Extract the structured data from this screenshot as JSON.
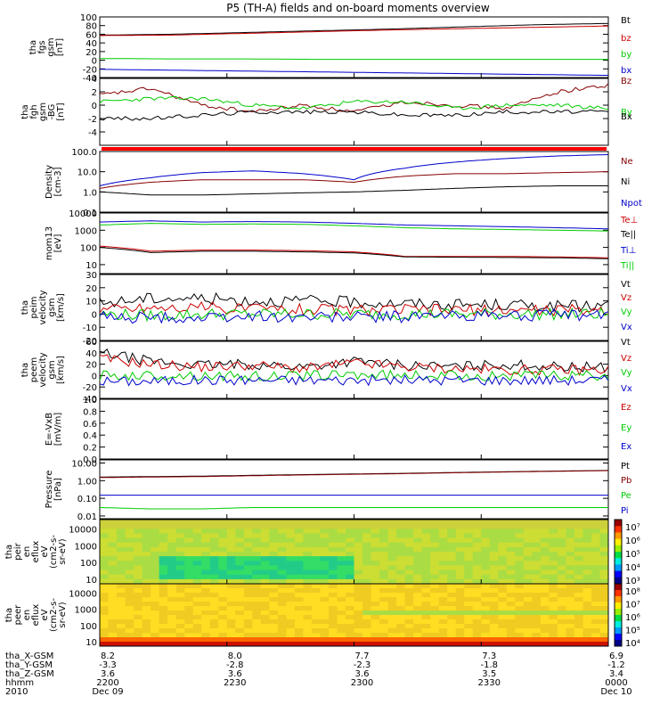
{
  "title": "P5 (TH-A) fields and on-board moments overview",
  "colors": {
    "black": "#000000",
    "red": "#cc0000",
    "green": "#00cc00",
    "blue": "#0000cc",
    "darkred": "#880000"
  },
  "chart_data": [
    {
      "id": "fgs",
      "type": "line",
      "ylabel": [
        "tha",
        "fgs",
        "gsm",
        "[nT]"
      ],
      "yscale": "linear",
      "ylim": [
        -40,
        100
      ],
      "yticks": [
        "100",
        "80",
        "60",
        "40",
        "20",
        "0",
        "-20",
        "-40"
      ],
      "yticks_values": [
        100,
        80,
        60,
        40,
        20,
        0,
        -20,
        -40
      ],
      "series": [
        {
          "name": "Bt",
          "color": "black",
          "values": [
            58,
            60,
            64,
            68,
            72,
            77,
            82,
            85
          ]
        },
        {
          "name": "bz",
          "color": "red",
          "values": [
            57,
            58,
            62,
            66,
            70,
            73,
            76,
            79
          ]
        },
        {
          "name": "by",
          "color": "green",
          "values": [
            4,
            3,
            3,
            2,
            2,
            2,
            2,
            2
          ]
        },
        {
          "name": "bx",
          "color": "blue",
          "values": [
            -21,
            -23,
            -25,
            -27,
            -29,
            -31,
            -33,
            -35
          ]
        }
      ]
    },
    {
      "id": "fgh",
      "type": "line",
      "ylabel": [
        "tha",
        "fgh",
        "gsm",
        "-BG",
        "[nT]"
      ],
      "yscale": "linear",
      "ylim": [
        -6,
        4
      ],
      "yticks": [
        "4",
        "2",
        "0",
        "-2",
        "-4"
      ],
      "yticks_values": [
        4,
        2,
        0,
        -2,
        -4
      ],
      "series": [
        {
          "name": "Bz",
          "color": "darkred",
          "values": [
            1.5,
            2.5,
            0,
            -1,
            0,
            -1,
            0.5,
            0,
            -0.5,
            2,
            3
          ]
        },
        {
          "name": "By",
          "color": "green",
          "values": [
            0.5,
            1,
            1,
            0,
            -0.5,
            0.5,
            0.5,
            -0.5,
            0,
            0,
            -0.5
          ]
        },
        {
          "name": "Bx",
          "color": "black",
          "values": [
            -2,
            -2,
            -1.5,
            -1,
            -1,
            -1,
            -1.5,
            -1.5,
            -1,
            -1,
            -1
          ]
        }
      ]
    },
    {
      "id": "density",
      "type": "line",
      "ylabel": [
        "Density",
        "[cm-3]"
      ],
      "yscale": "log",
      "ylim": [
        0.1,
        100
      ],
      "yticks": [
        "100.0",
        "10.0",
        "1.0",
        "0.1"
      ],
      "yticks_values": [
        100,
        10,
        1,
        0.1
      ],
      "series": [
        {
          "name": "Ne",
          "color": "darkred",
          "values": [
            1.5,
            3,
            4,
            4,
            4,
            3,
            6,
            8,
            8,
            9,
            10
          ]
        },
        {
          "name": "Ni",
          "color": "black",
          "values": [
            1,
            0.7,
            0.7,
            0.8,
            0.9,
            1,
            1.2,
            1.5,
            1.8,
            2,
            2
          ]
        },
        {
          "name": "Npot",
          "color": "blue",
          "values": [
            2,
            5,
            9,
            11,
            8,
            4,
            15,
            30,
            45,
            60,
            70
          ]
        }
      ]
    },
    {
      "id": "temperature",
      "type": "line",
      "ylabel": [
        "mom13",
        "[eV]"
      ],
      "yscale": "log",
      "ylim": [
        3,
        10000
      ],
      "yticks": [
        "10000",
        "1000",
        "100",
        "10"
      ],
      "yticks_values": [
        10000,
        1000,
        100,
        10
      ],
      "series": [
        {
          "name": "Te⊥",
          "color": "red",
          "values": [
            120,
            60,
            70,
            70,
            65,
            55,
            30,
            30,
            30,
            28,
            25
          ]
        },
        {
          "name": "Te||",
          "color": "black",
          "values": [
            100,
            50,
            60,
            60,
            55,
            48,
            28,
            27,
            26,
            25,
            22
          ]
        },
        {
          "name": "Ti⊥",
          "color": "blue",
          "values": [
            3000,
            3500,
            3000,
            3200,
            3000,
            2500,
            2000,
            1800,
            1600,
            1400,
            1200
          ]
        },
        {
          "name": "Ti||",
          "color": "green",
          "values": [
            2000,
            2500,
            2200,
            2300,
            2200,
            1800,
            1400,
            1200,
            1100,
            1000,
            900
          ]
        }
      ]
    },
    {
      "id": "peim",
      "type": "line",
      "ylabel": [
        "tha",
        "peim",
        "velocity",
        "gsm",
        "[km/s]"
      ],
      "yscale": "linear",
      "ylim": [
        -20,
        30
      ],
      "yticks": [
        "30",
        "20",
        "10",
        "0",
        "-10",
        "-20"
      ],
      "yticks_values": [
        30,
        20,
        10,
        0,
        -10,
        -20
      ],
      "series": [
        {
          "name": "Vt",
          "color": "black",
          "values": [
            8,
            12,
            12,
            10,
            10,
            9,
            8,
            7,
            7,
            6,
            6
          ]
        },
        {
          "name": "Vz",
          "color": "red",
          "values": [
            4,
            5,
            5,
            4,
            4,
            3,
            3,
            3,
            3,
            3,
            3
          ]
        },
        {
          "name": "Vy",
          "color": "green",
          "values": [
            0,
            -1,
            0,
            0,
            0,
            0,
            0,
            0,
            0,
            0,
            0
          ]
        },
        {
          "name": "Vx",
          "color": "blue",
          "values": [
            -2,
            -3,
            -3,
            -2,
            -2,
            -2,
            -2,
            -1,
            -1,
            -1,
            -1
          ]
        }
      ]
    },
    {
      "id": "peem",
      "type": "line",
      "ylabel": [
        "tha",
        "peem",
        "velocity",
        "gsm",
        "[km/s]"
      ],
      "yscale": "linear",
      "ylim": [
        -40,
        60
      ],
      "yticks": [
        "60",
        "40",
        "20",
        "0",
        "-20",
        "-40"
      ],
      "yticks_values": [
        60,
        40,
        20,
        0,
        -20,
        -40
      ],
      "series": [
        {
          "name": "Vt",
          "color": "black",
          "values": [
            40,
            25,
            18,
            20,
            15,
            25,
            18,
            15,
            20,
            15,
            15
          ]
        },
        {
          "name": "Vz",
          "color": "red",
          "values": [
            30,
            20,
            15,
            18,
            12,
            22,
            15,
            12,
            10,
            10,
            10
          ]
        },
        {
          "name": "Vy",
          "color": "green",
          "values": [
            0,
            0,
            0,
            -2,
            0,
            2,
            0,
            0,
            0,
            0,
            0
          ]
        },
        {
          "name": "Vx",
          "color": "blue",
          "values": [
            -10,
            -10,
            -8,
            -8,
            -8,
            -8,
            -8,
            -8,
            -8,
            -8,
            -8
          ]
        }
      ]
    },
    {
      "id": "efield",
      "type": "line",
      "ylabel": [
        "E=-VxB",
        "[mV/m]"
      ],
      "yscale": "linear",
      "ylim": [
        0,
        1
      ],
      "yticks": [
        "1.0",
        "0.8",
        "0.6",
        "0.4",
        "0.2",
        "0.0"
      ],
      "yticks_values": [
        1,
        0.8,
        0.6,
        0.4,
        0.2,
        0
      ],
      "series": [
        {
          "name": "Ez",
          "color": "red",
          "values": []
        },
        {
          "name": "Ey",
          "color": "green",
          "values": []
        },
        {
          "name": "Ex",
          "color": "blue",
          "values": []
        }
      ]
    },
    {
      "id": "pressure",
      "type": "line",
      "ylabel": [
        "Pressure",
        "[nPa]"
      ],
      "yscale": "log",
      "ylim": [
        0.007,
        15
      ],
      "yticks": [
        "10.00",
        "1.00",
        "0.10",
        "0.01"
      ],
      "yticks_values": [
        10,
        1,
        0.1,
        0.01
      ],
      "series": [
        {
          "name": "Pt",
          "color": "black",
          "values": [
            1.6,
            1.7,
            1.8,
            2,
            2.2,
            2.4,
            2.6,
            2.9,
            3.2,
            3.5,
            3.8
          ]
        },
        {
          "name": "Pb",
          "color": "darkred",
          "values": [
            1.5,
            1.6,
            1.7,
            1.9,
            2.1,
            2.3,
            2.5,
            2.8,
            3.1,
            3.4,
            3.7
          ]
        },
        {
          "name": "Pe",
          "color": "green",
          "values": [
            0.03,
            0.025,
            0.025,
            0.03,
            0.03,
            0.03,
            0.03,
            0.03,
            0.03,
            0.03,
            0.03
          ]
        },
        {
          "name": "Pi",
          "color": "blue",
          "values": [
            0.15,
            0.15,
            0.15,
            0.15,
            0.15,
            0.15,
            0.15,
            0.15,
            0.15,
            0.15,
            0.15
          ]
        }
      ]
    },
    {
      "id": "peir",
      "type": "heatmap",
      "ylabel": [
        "tha",
        "peir",
        "en",
        "eflux",
        "eV",
        "(cm2-s-",
        "sr-eV)"
      ],
      "yscale": "log",
      "yticks": [
        "10000",
        "1000",
        "100",
        "10"
      ],
      "yticks_values": [
        10000,
        1000,
        100,
        10
      ],
      "colorbar_ticks": [
        "10⁷",
        "10⁶",
        "10⁵",
        "10⁴",
        "10³"
      ]
    },
    {
      "id": "peer",
      "type": "heatmap",
      "ylabel": [
        "tha",
        "peer",
        "en",
        "eflux",
        "eV",
        "(cm2-s-",
        "sr-eV)"
      ],
      "yscale": "log",
      "yticks": [
        "10000",
        "1000",
        "100",
        "10"
      ],
      "yticks_values": [
        10000,
        1000,
        100,
        10
      ],
      "colorbar_ticks": [
        "10⁸",
        "10⁷",
        "10⁶",
        "10⁵",
        "10⁴"
      ]
    }
  ],
  "ephemeris": {
    "labels": [
      "tha_X-GSM",
      "tha_Y-GSM",
      "tha_Z-GSM",
      "hhmm",
      "2010"
    ],
    "columns": [
      {
        "values": [
          "8.2",
          "-3.3",
          "3.6",
          "2200",
          "Dec 09"
        ]
      },
      {
        "values": [
          "8.0",
          "-2.8",
          "3.6",
          "2230",
          ""
        ]
      },
      {
        "values": [
          "7.7",
          "-2.3",
          "3.6",
          "2300",
          ""
        ]
      },
      {
        "values": [
          "7.3",
          "-1.8",
          "3.5",
          "2330",
          ""
        ]
      },
      {
        "values": [
          "6.9",
          "-1.2",
          "3.4",
          "0000",
          "Dec 10"
        ]
      }
    ]
  }
}
